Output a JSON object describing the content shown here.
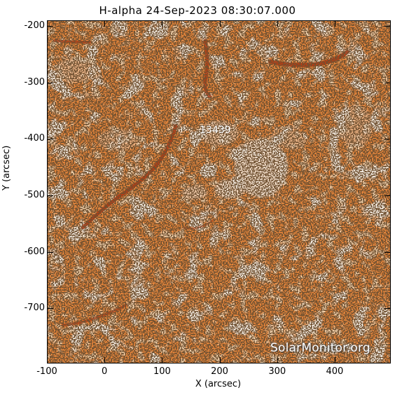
{
  "title": "H-alpha 24-Sep-2023 08:30:07.000",
  "axes": {
    "x_label": "X (arcsec)",
    "y_label": "Y (arcsec)",
    "x_ticks": [
      "-100",
      "0",
      "100",
      "200",
      "300",
      "400"
    ],
    "x_tick_values": [
      -100,
      0,
      100,
      200,
      300,
      400
    ],
    "y_ticks": [
      "-200",
      "-300",
      "-400",
      "-500",
      "-600",
      "-700"
    ],
    "y_tick_values": [
      -200,
      -300,
      -400,
      -500,
      -600,
      -700
    ],
    "x_range": [
      -100,
      495
    ],
    "y_range": [
      -795,
      -190
    ]
  },
  "annotations": {
    "region": "13439"
  },
  "watermark": "SolarMonitor.org",
  "colors": {
    "base": "#f08a3c",
    "dark_speckle": "#2a1608",
    "bright_patch": "#fff6ea",
    "filament": "#b8320c"
  }
}
